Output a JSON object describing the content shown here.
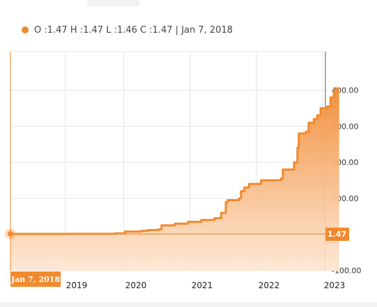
{
  "legend": {
    "text": "O :1.47 H :1.47 L :1.46 C :1.47 | Jan 7, 2018"
  },
  "cursor": {
    "date_label": "Jan 7, 2018",
    "price_label": "1.47",
    "value": 1.47
  },
  "colors": {
    "line": "#f18a2e",
    "fill_top": "#f28c35",
    "fill_bottom": "#fde6d2",
    "tag": "#f18a2e",
    "grid": "#e4e4e4"
  },
  "chart_data": {
    "type": "area",
    "xlabel": "",
    "ylabel": "",
    "ylim": [
      -100,
      450
    ],
    "xlim": [
      2018.02,
      2023.0
    ],
    "grid": true,
    "y_ticks": [
      {
        "value": 400,
        "label": "400.00"
      },
      {
        "value": 300,
        "label": "300.00"
      },
      {
        "value": 200,
        "label": "200.00"
      },
      {
        "value": 100,
        "label": "100.00"
      },
      {
        "value": -100,
        "label": "-100.00"
      }
    ],
    "x_ticks": [
      {
        "value": 2019.0,
        "label": "2019"
      },
      {
        "value": 2020.0,
        "label": "2020"
      },
      {
        "value": 2021.0,
        "label": "2021"
      },
      {
        "value": 2022.0,
        "label": "2022"
      },
      {
        "value": 2023.0,
        "label": "2023"
      }
    ],
    "x": [
      2018.02,
      2018.5,
      2018.9,
      2019.3,
      2019.6,
      2019.75,
      2020.0,
      2020.1,
      2020.25,
      2020.3,
      2020.5,
      2020.7,
      2020.9,
      2021.1,
      2021.2,
      2021.27,
      2021.3,
      2021.47,
      2021.5,
      2021.55,
      2021.62,
      2021.8,
      2021.98,
      2022.1,
      2022.13,
      2022.3,
      2022.35,
      2022.37,
      2022.48,
      2022.52,
      2022.6,
      2022.65,
      2022.7,
      2022.8,
      2022.85,
      2022.9,
      2022.93,
      2022.98
    ],
    "values": [
      1.47,
      1.47,
      1.5,
      1.5,
      3,
      8,
      10,
      12,
      14,
      25,
      30,
      35,
      40,
      45,
      60,
      90,
      95,
      100,
      120,
      130,
      140,
      150,
      150,
      155,
      180,
      200,
      240,
      280,
      285,
      310,
      320,
      330,
      350,
      355,
      380,
      400,
      405,
      405
    ]
  }
}
